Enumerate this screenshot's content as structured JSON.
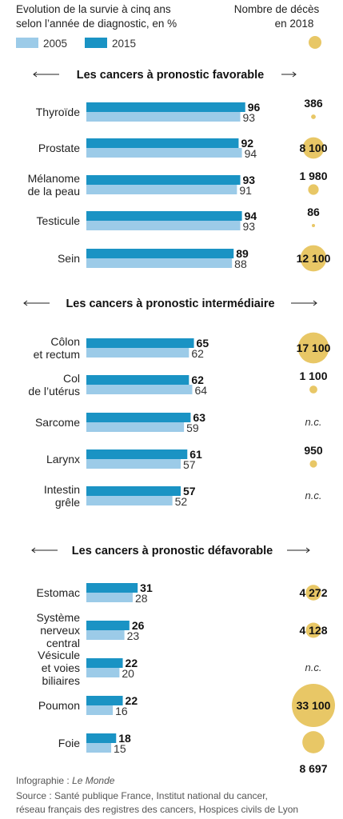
{
  "header": {
    "survival_title_line1": "Evolution de la survie à cinq ans",
    "survival_title_line2": "selon l’année de diagnostic, en %",
    "deaths_title_line1": "Nombre de décès",
    "deaths_title_line2": "en 2018"
  },
  "legend": [
    {
      "label": "2005",
      "color": "#9ccbe8"
    },
    {
      "label": "2015",
      "color": "#1a93c4"
    }
  ],
  "colors": {
    "bar_2005": "#9ccbe8",
    "bar_2015": "#1a93c4",
    "bubble": "#e8c766",
    "rule": "#222222"
  },
  "footer": {
    "credit_prefix": "Infographie : ",
    "credit_source": "Le Monde",
    "source_line1": "Source : Santé publique France, Institut national du cancer,",
    "source_line2": "réseau français des registres des cancers, Hospices civils de Lyon"
  },
  "chart_data": {
    "type": "bar",
    "orientation": "horizontal",
    "units": "%",
    "series_names": [
      "2005",
      "2015"
    ],
    "deaths_label": "Nombre de décès en 2018",
    "sections": [
      {
        "title": "Les cancers à pronostic favorable",
        "categories": [
          {
            "label": [
              "Thyroïde"
            ],
            "v2015": 96,
            "v2005": 93,
            "deaths": 386,
            "deaths_label": "386"
          },
          {
            "label": [
              "Prostate"
            ],
            "v2015": 92,
            "v2005": 94,
            "deaths": 8100,
            "deaths_label": "8 100"
          },
          {
            "label": [
              "Mélanome",
              "de la peau"
            ],
            "v2015": 93,
            "v2005": 91,
            "deaths": 1980,
            "deaths_label": "1 980"
          },
          {
            "label": [
              "Testicule"
            ],
            "v2015": 94,
            "v2005": 93,
            "deaths": 86,
            "deaths_label": "86"
          },
          {
            "label": [
              "Sein"
            ],
            "v2015": 89,
            "v2005": 88,
            "deaths": 12100,
            "deaths_label": "12 100"
          }
        ]
      },
      {
        "title": "Les cancers à pronostic intermédiaire",
        "categories": [
          {
            "label": [
              "Côlon",
              "et rectum"
            ],
            "v2015": 65,
            "v2005": 62,
            "deaths": 17100,
            "deaths_label": "17 100"
          },
          {
            "label": [
              "Col",
              "de l’utérus"
            ],
            "v2015": 62,
            "v2005": 64,
            "deaths": 1100,
            "deaths_label": "1 100"
          },
          {
            "label": [
              "Sarcome"
            ],
            "v2015": 63,
            "v2005": 59,
            "deaths": null,
            "deaths_label": "n.c."
          },
          {
            "label": [
              "Larynx"
            ],
            "v2015": 61,
            "v2005": 57,
            "deaths": 950,
            "deaths_label": "950"
          },
          {
            "label": [
              "Intestin",
              "grêle"
            ],
            "v2015": 57,
            "v2005": 52,
            "deaths": null,
            "deaths_label": "n.c."
          }
        ]
      },
      {
        "title": "Les cancers à pronostic défavorable",
        "categories": [
          {
            "label": [
              "Estomac"
            ],
            "v2015": 31,
            "v2005": 28,
            "deaths": 4272,
            "deaths_label": "4 272"
          },
          {
            "label": [
              "Système",
              "nerveux",
              "central"
            ],
            "v2015": 26,
            "v2005": 23,
            "deaths": 4128,
            "deaths_label": "4 128"
          },
          {
            "label": [
              "Vésicule",
              "et voies",
              "biliaires"
            ],
            "v2015": 22,
            "v2005": 20,
            "deaths": null,
            "deaths_label": "n.c."
          },
          {
            "label": [
              "Poumon"
            ],
            "v2015": 22,
            "v2005": 16,
            "deaths": 33100,
            "deaths_label": "33 100"
          },
          {
            "label": [
              "Foie"
            ],
            "v2015": 18,
            "v2005": 15,
            "deaths": 8697,
            "deaths_label": "8 697"
          }
        ]
      }
    ]
  }
}
